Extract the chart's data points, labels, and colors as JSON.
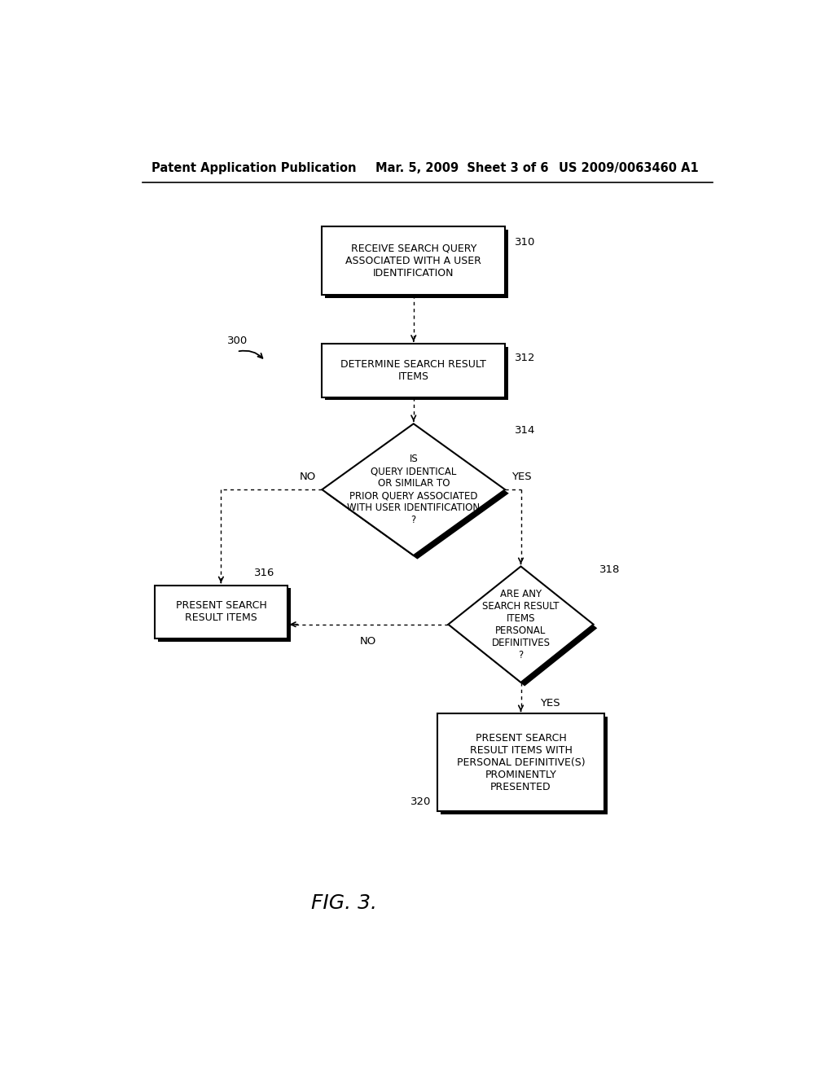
{
  "header_left": "Patent Application Publication",
  "header_mid": "Mar. 5, 2009  Sheet 3 of 6",
  "header_right": "US 2009/0063460 A1",
  "figure_label": "FIG. 3.",
  "ref_300": "300",
  "ref_310": "310",
  "ref_312": "312",
  "ref_314": "314",
  "ref_316": "316",
  "ref_318": "318",
  "ref_320": "320",
  "box310_text": "RECEIVE SEARCH QUERY\nASSOCIATED WITH A USER\nIDENTIFICATION",
  "box312_text": "DETERMINE SEARCH RESULT\nITEMS",
  "diamond314_text": "IS\nQUERY IDENTICAL\nOR SIMILAR TO\nPRIOR QUERY ASSOCIATED\nWITH USER IDENTIFICATION\n?",
  "box316_text": "PRESENT SEARCH\nRESULT ITEMS",
  "diamond318_text": "ARE ANY\nSEARCH RESULT\nITEMS\nPERSONAL\nDEFINITIVES\n?",
  "box320_text": "PRESENT SEARCH\nRESULT ITEMS WITH\nPERSONAL DEFINITIVE(S)\nPROMINENTLY\nPRESENTED",
  "label_no_left": "NO",
  "label_yes_right": "YES",
  "label_no_right": "NO",
  "label_yes_bottom318": "YES",
  "bg_color": "#ffffff",
  "text_color": "#000000",
  "font_size_header": 10.5,
  "font_size_body": 9,
  "font_size_ref": 9
}
